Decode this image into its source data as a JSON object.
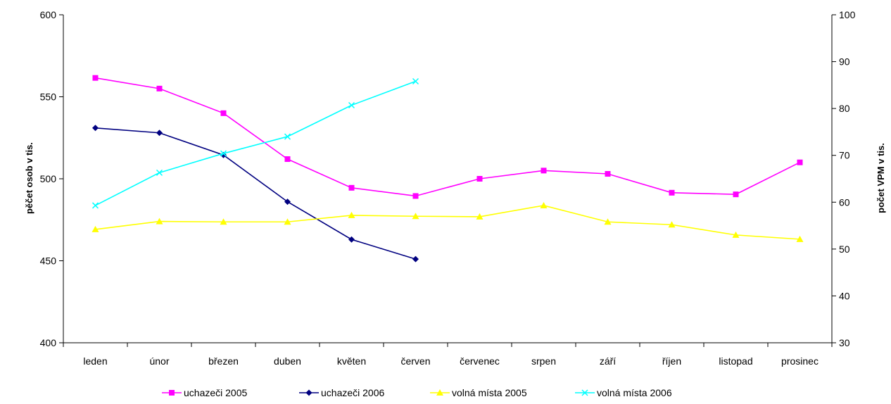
{
  "chart_data": {
    "type": "line",
    "title": "",
    "categories": [
      "leden",
      "únor",
      "březen",
      "duben",
      "květen",
      "červen",
      "červenec",
      "srpen",
      "září",
      "říjen",
      "listopad",
      "prosinec"
    ],
    "y_left": {
      "label": "pěčet osob v tis.",
      "range": [
        400,
        600
      ],
      "ticks": [
        400,
        450,
        500,
        550,
        600
      ]
    },
    "y_right": {
      "label": "počet VPM v tis.",
      "range": [
        30,
        100
      ],
      "ticks": [
        30,
        40,
        50,
        60,
        70,
        80,
        90,
        100
      ]
    },
    "series": [
      {
        "name": "uchazeči 2005",
        "axis": "left",
        "color": "#ff00ff",
        "marker": "square",
        "values": [
          561.5,
          555,
          540,
          512,
          494.5,
          489.5,
          500,
          505,
          503,
          491.5,
          490.5,
          510
        ]
      },
      {
        "name": "uchazeči 2006",
        "axis": "left",
        "color": "#000080",
        "marker": "diamond",
        "values": [
          531,
          528,
          514.5,
          486,
          463,
          451,
          null,
          null,
          null,
          null,
          null,
          null
        ]
      },
      {
        "name": "volná místa 2005",
        "axis": "right",
        "color": "#ffff00",
        "marker": "triangle",
        "values": [
          54.2,
          55.9,
          55.8,
          55.8,
          57.2,
          57.0,
          56.9,
          59.3,
          55.8,
          55.2,
          53.0,
          52.1
        ]
      },
      {
        "name": "volná místa 2006",
        "axis": "right",
        "color": "#00ffff",
        "marker": "x",
        "values": [
          59.3,
          66.3,
          70.4,
          74.0,
          80.7,
          85.8,
          null,
          null,
          null,
          null,
          null,
          null
        ]
      }
    ],
    "grid": false,
    "legend_position": "bottom"
  }
}
